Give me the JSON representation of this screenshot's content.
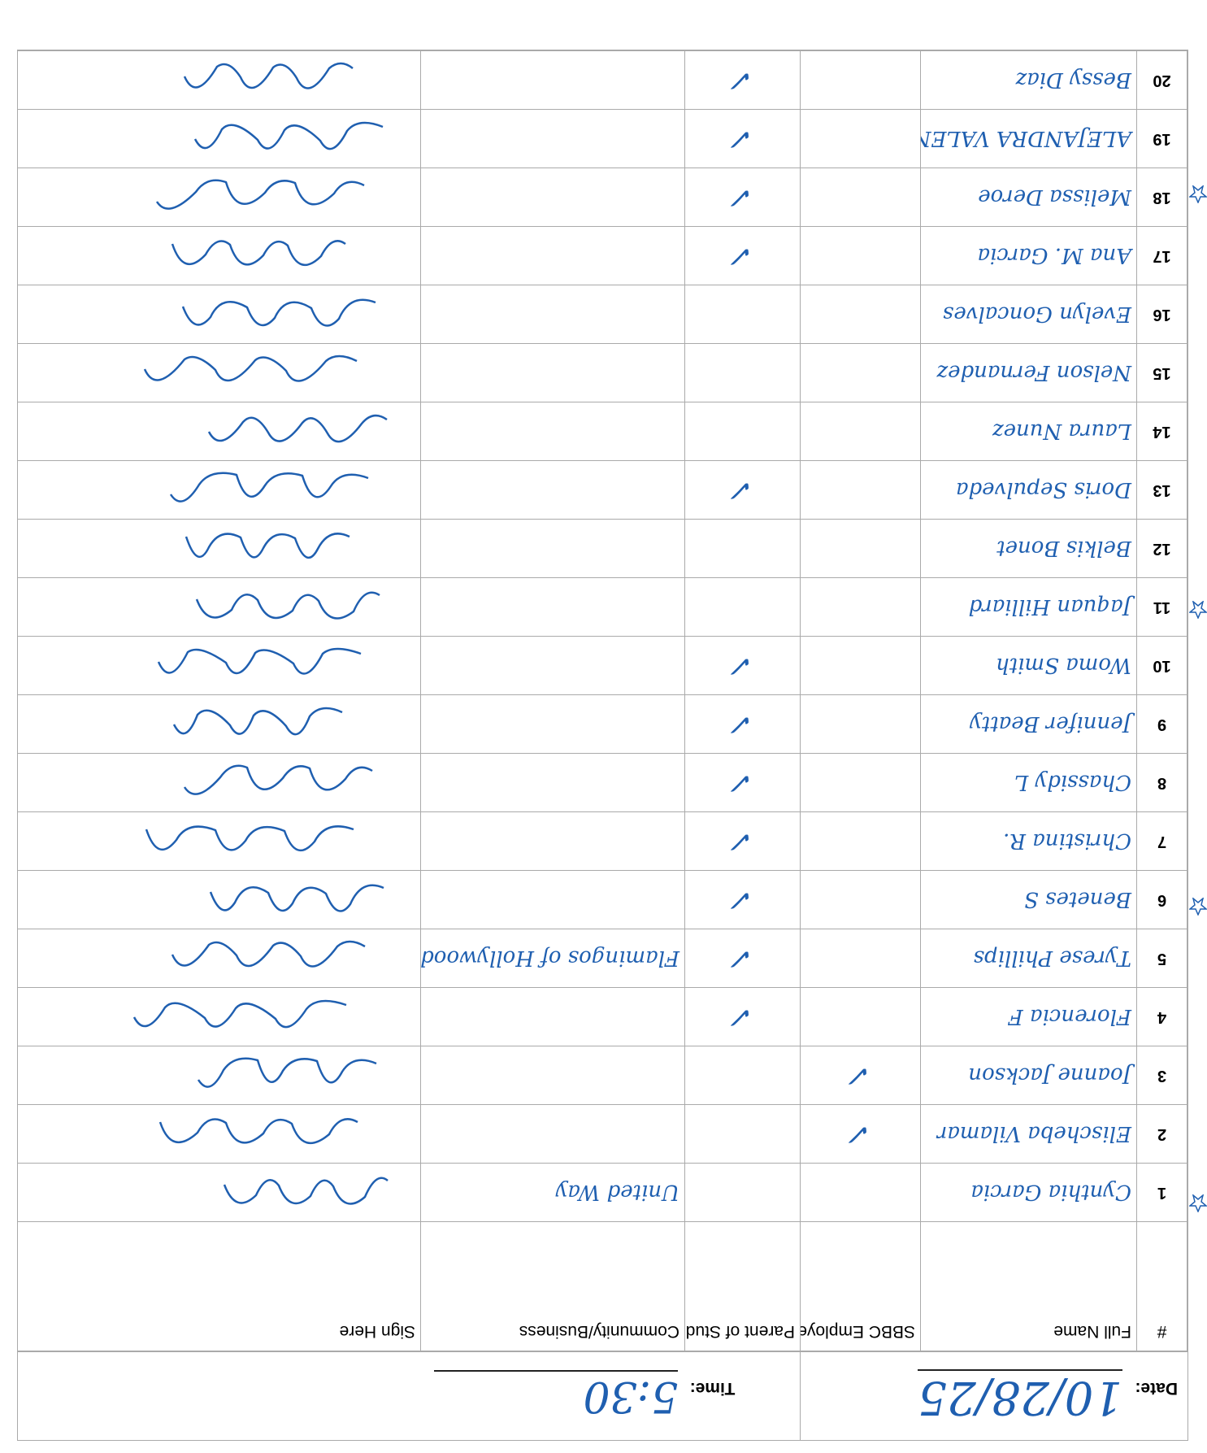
{
  "header": {
    "date_label": "Date:",
    "date": "10/28/25",
    "time_label": "Time:",
    "time": "5:30"
  },
  "table": {
    "columns": [
      "#",
      "Full Name",
      "SBBC Employee",
      "Parent of Student",
      "Community/Business",
      "Sign Here"
    ],
    "rows": [
      {
        "number": "1",
        "name": "Cynthia Garcia",
        "community": "United Way"
      },
      {
        "number": "2",
        "name": "Elischeba Vilamar",
        "employee": "✓"
      },
      {
        "number": "3",
        "name": "Joanne Jackson",
        "employee": "✓"
      },
      {
        "number": "4",
        "name": "Florencia F",
        "parent": "✓"
      },
      {
        "number": "5",
        "name": "Tyrese Phillips",
        "parent": "✓",
        "community": "Flamingos of Hollywood"
      },
      {
        "number": "6",
        "name": "Benetes S",
        "parent": "✓"
      },
      {
        "number": "7",
        "name": "Christina R.",
        "parent": "✓"
      },
      {
        "number": "8",
        "name": "Chassidy L",
        "parent": "✓"
      },
      {
        "number": "9",
        "name": "Jennifer Beatty",
        "parent": "✓"
      },
      {
        "number": "10",
        "name": "Woma Smith",
        "parent": "✓"
      },
      {
        "number": "11",
        "name": "Jaquan Hilliard"
      },
      {
        "number": "12",
        "name": "Belkis Bonet"
      },
      {
        "number": "13",
        "name": "Doris Sepulveda",
        "parent": "✓"
      },
      {
        "number": "14",
        "name": "Laura Nunez"
      },
      {
        "number": "15",
        "name": "Nelson Fernandez"
      },
      {
        "number": "16",
        "name": "Evelyn Goncalves"
      },
      {
        "number": "17",
        "name": "Ana M. Garcia",
        "parent": "✓"
      },
      {
        "number": "18",
        "name": "Melissa Deroe",
        "parent": "✓"
      },
      {
        "number": "19",
        "name": "ALEJANDRA VALENTINE",
        "parent": "✓"
      },
      {
        "number": "20",
        "name": "Bessy Diaz",
        "parent": "✓"
      }
    ]
  }
}
